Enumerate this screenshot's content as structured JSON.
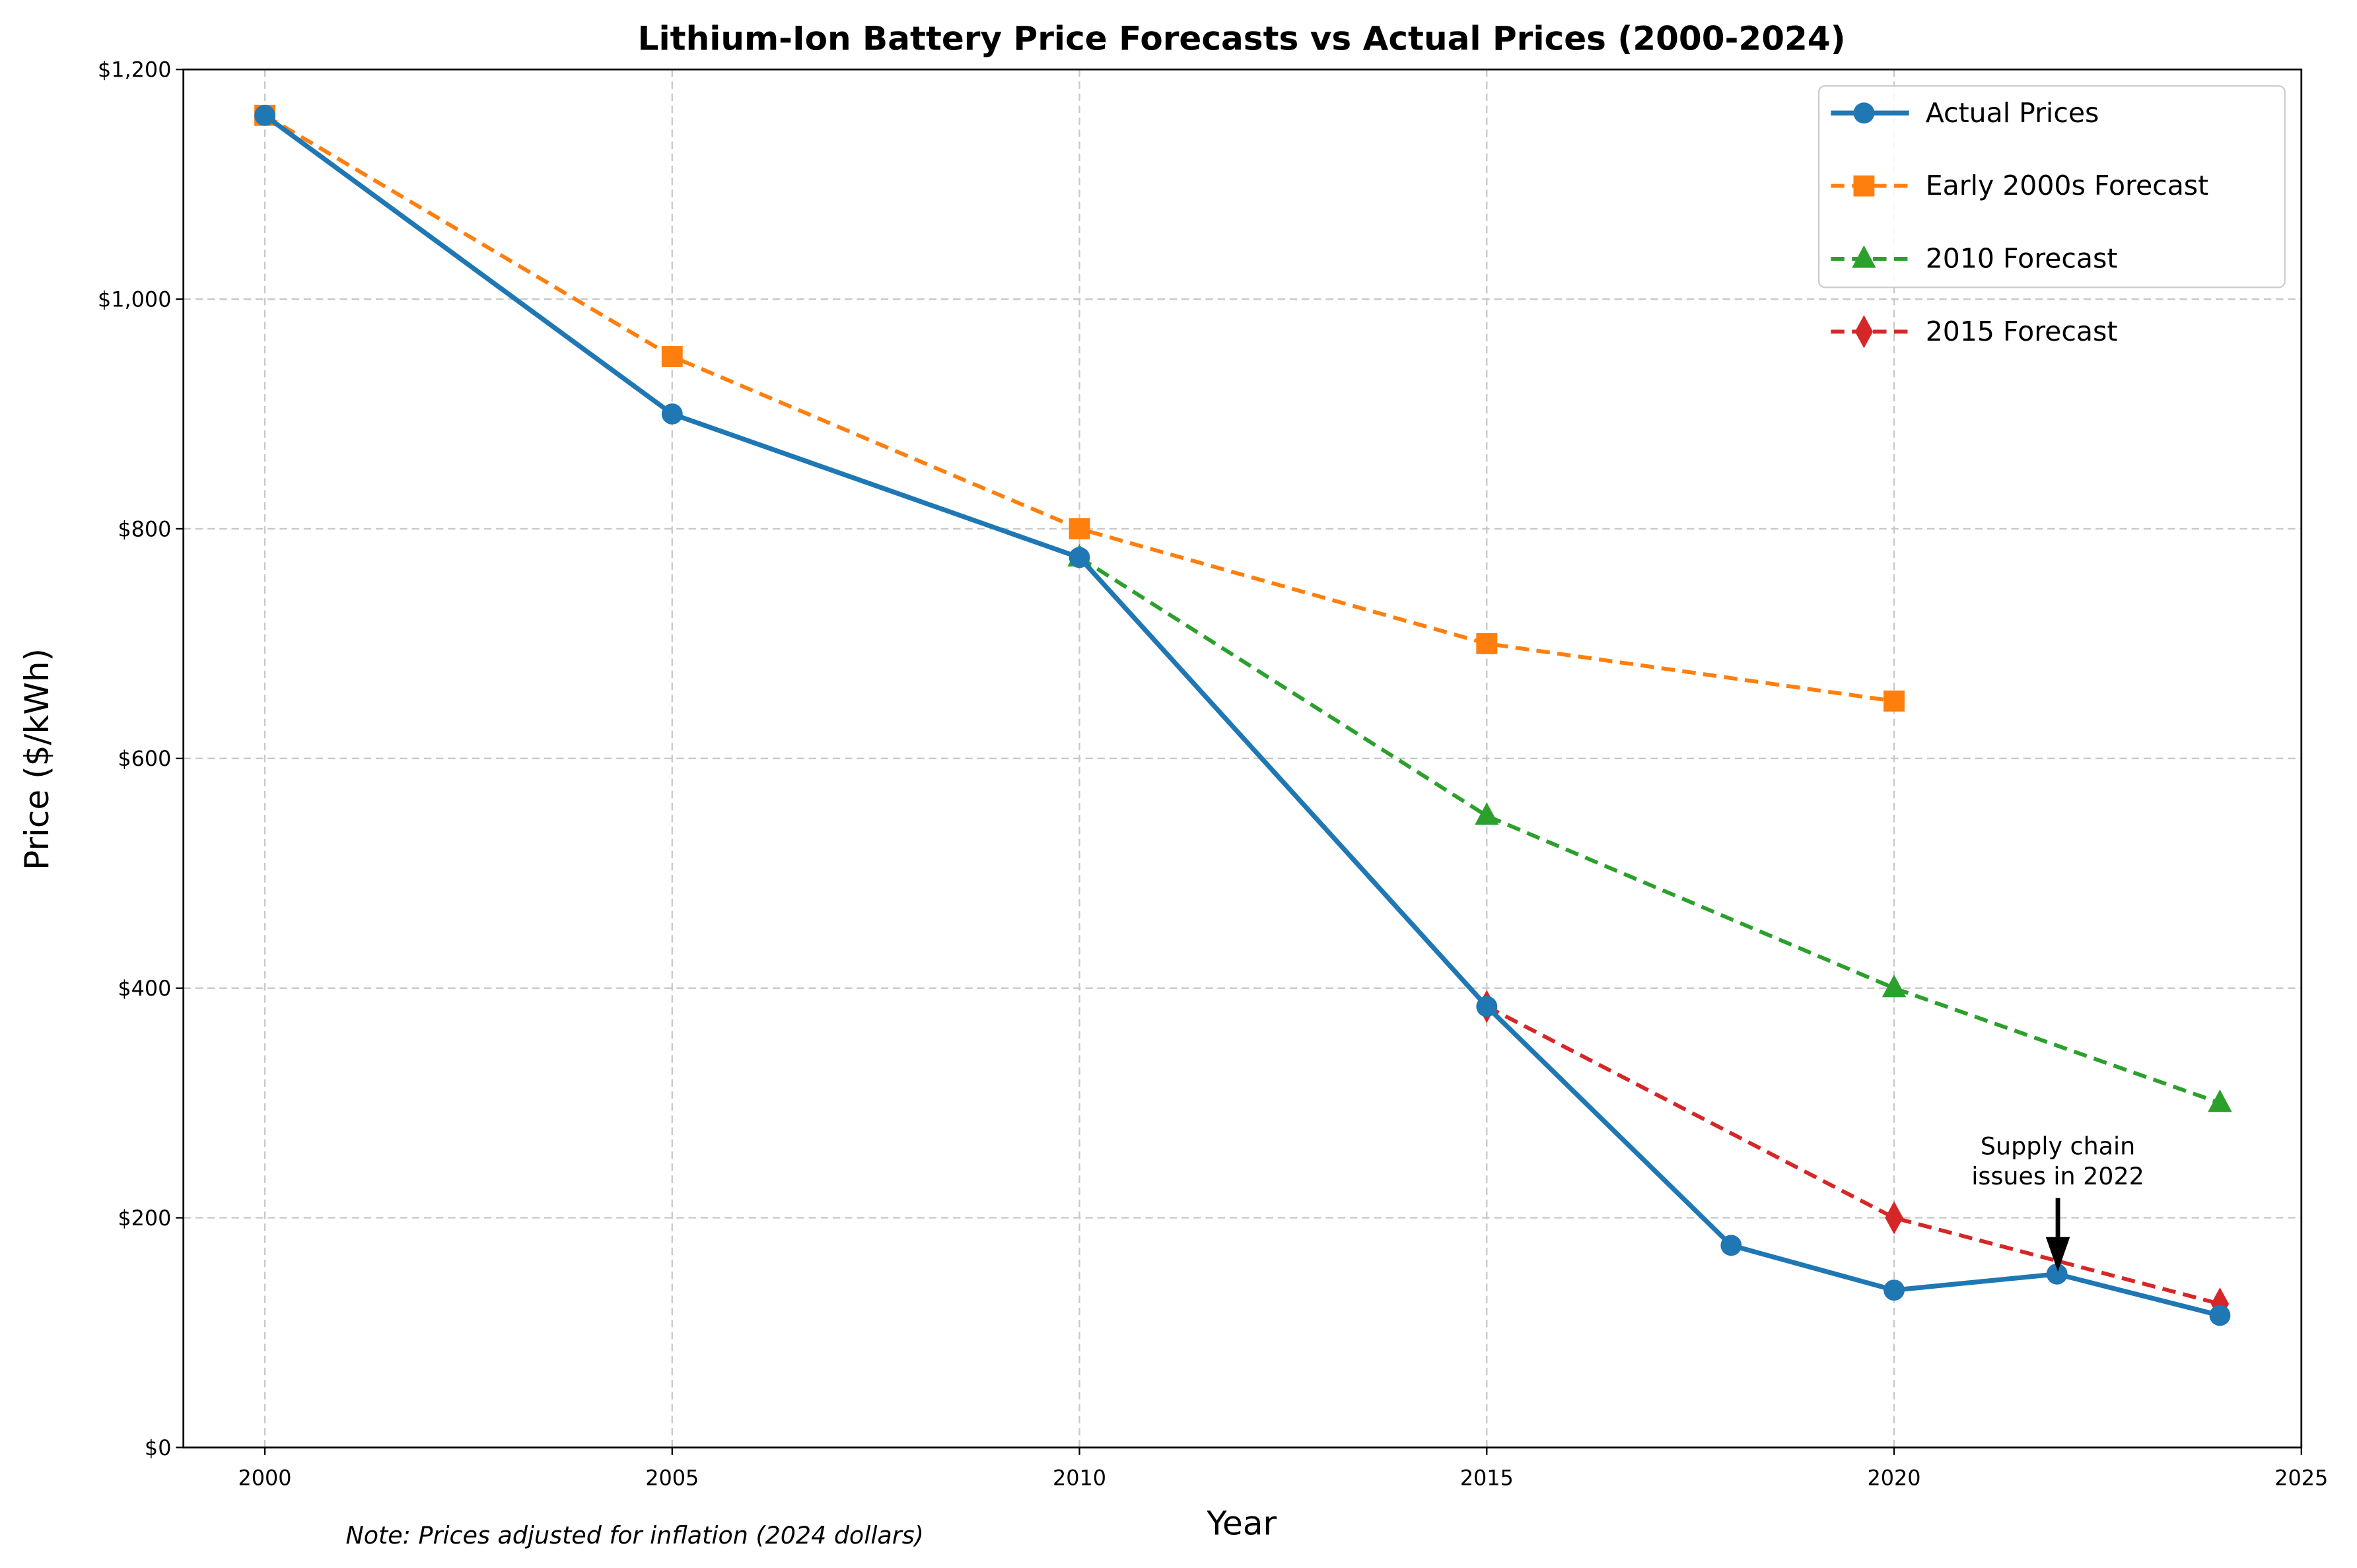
{
  "chart_data": {
    "type": "line",
    "title": "Lithium-Ion Battery Price Forecasts vs Actual Prices (2000-2024)",
    "xlabel": "Year",
    "ylabel": "Price ($/kWh)",
    "xlim": [
      1999,
      2025
    ],
    "ylim": [
      0,
      1200
    ],
    "xticks": [
      2000,
      2005,
      2010,
      2015,
      2020,
      2025
    ],
    "xtick_labels": [
      "2000",
      "2005",
      "2010",
      "2015",
      "2020",
      "2025"
    ],
    "yticks": [
      0,
      200,
      400,
      600,
      800,
      1000,
      1200
    ],
    "ytick_labels": [
      "$0",
      "$200",
      "$400",
      "$600",
      "$800",
      "$1,000",
      "$1,200"
    ],
    "grid": true,
    "legend_position": "top-right",
    "series": [
      {
        "name": "Actual Prices",
        "color": "#1f77b4",
        "style": "solid",
        "marker": "circle",
        "x": [
          2000,
          2005,
          2010,
          2015,
          2018,
          2020,
          2022,
          2024
        ],
        "y": [
          1160,
          900,
          775,
          384,
          176,
          137,
          151,
          115
        ]
      },
      {
        "name": "Early 2000s Forecast",
        "color": "#ff7f0e",
        "style": "dashed",
        "marker": "square",
        "x": [
          2000,
          2005,
          2010,
          2015,
          2020
        ],
        "y": [
          1160,
          950,
          800,
          700,
          650
        ]
      },
      {
        "name": "2010 Forecast",
        "color": "#2ca02c",
        "style": "dashed",
        "marker": "triangle",
        "x": [
          2010,
          2015,
          2020,
          2024
        ],
        "y": [
          775,
          550,
          400,
          300
        ]
      },
      {
        "name": "2015 Forecast",
        "color": "#d62728",
        "style": "dashed",
        "marker": "diamond",
        "x": [
          2015,
          2020,
          2024
        ],
        "y": [
          384,
          200,
          125
        ]
      }
    ],
    "annotation": {
      "line1": "Supply chain",
      "line2": "issues in 2022",
      "x": 2022,
      "y": 151
    },
    "note": "Note: Prices adjusted for inflation (2024 dollars)"
  }
}
